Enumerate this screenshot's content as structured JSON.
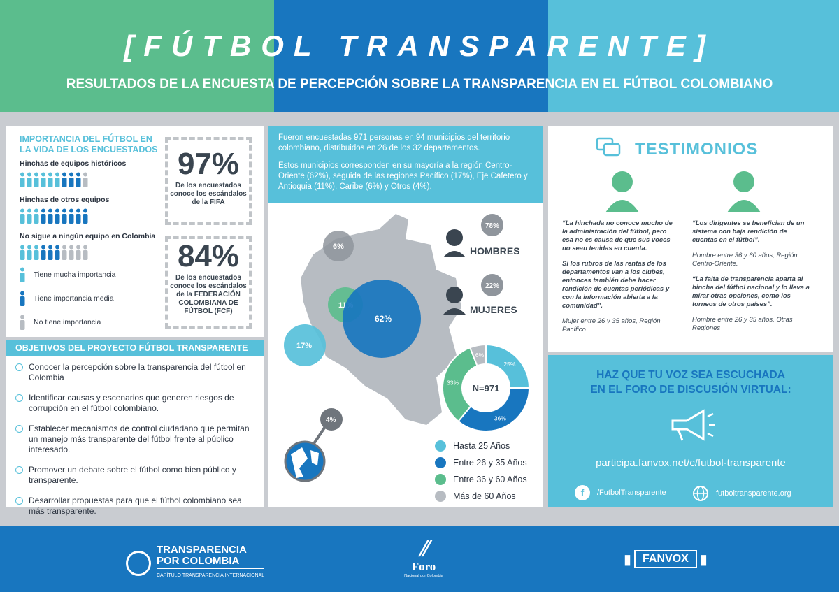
{
  "header": {
    "title": "[FÚTBOL TRANSPARENTE]",
    "subtitle": "RESULTADOS DE LA ENCUESTA DE PERCEPCIÓN SOBRE LA TRANSPARENCIA EN EL FÚTBOL COLOMBIANO"
  },
  "importance": {
    "heading_line1": "IMPORTANCIA DEL FÚTBOL EN",
    "heading_line2": "LA VIDA DE LOS ENCUESTADOS",
    "groups": [
      {
        "label": "Hinchas de equipos históricos",
        "mucha": 6,
        "media": 3,
        "ninguna": 1
      },
      {
        "label": "Hinchas de otros equipos",
        "mucha": 3,
        "media": 7,
        "ninguna": 0
      },
      {
        "label": "No sigue a ningún equipo en Colombia",
        "mucha": 3,
        "media": 3,
        "ninguna": 4
      }
    ],
    "legend": {
      "mucha": "Tiene mucha importancia",
      "media": "Tiene importancia media",
      "ninguna": "No tiene importancia"
    },
    "colors": {
      "mucha": "#57c0da",
      "media": "#1876bf",
      "ninguna": "#b7bcc2"
    }
  },
  "stats": [
    {
      "value": "97%",
      "caption_lines": [
        "De los encuestados",
        "conoce los escándalos",
        "de la FIFA"
      ]
    },
    {
      "value": "84%",
      "caption_lines": [
        "De los encuestados",
        "conoce los escándalos",
        "de la FEDERACIÓN",
        "COLOMBIANA DE",
        "FÚTBOL (FCF)"
      ]
    }
  ],
  "objectives": {
    "heading": "OBJETIVOS DEL PROYECTO FÚTBOL TRANSPARENTE",
    "items": [
      "Conocer la percepción sobre la transparencia del fútbol en Colombia",
      "Identificar causas y escenarios que generen riesgos de corrupción en el fútbol colombiano.",
      "Establecer mecanismos de control ciudadano que permitan un manejo más transparente del fútbol frente al público interesado.",
      "Promover un debate sobre el fútbol como bien público y transparente.",
      "Desarrollar propuestas para que el fútbol colombiano sea más transparente."
    ]
  },
  "survey": {
    "intro": "Fueron encuestadas 971 personas en 94 municipios del territorio colombiano, distribuidos en 26 de los 32 departamentos.",
    "regions": "Estos municipios corresponden en su mayoría a la región Centro-Oriente (62%), seguida de las regiones Pacífico (17%), Eje Cafetero y Antioquia (11%), Caribe (6%) y Otros (4%).",
    "map_regions": [
      {
        "label": "62%",
        "value": 62
      },
      {
        "label": "17%",
        "value": 17
      },
      {
        "label": "11%",
        "value": 11
      },
      {
        "label": "6%",
        "value": 6
      },
      {
        "label": "4%",
        "value": 4
      }
    ],
    "men": {
      "label": "HOMBRES",
      "pct": "78%"
    },
    "women": {
      "label": "MUJERES",
      "pct": "22%"
    },
    "donut_center": "N=971"
  },
  "chart_data": {
    "type": "pie",
    "title": "",
    "center_label": "N=971",
    "categories": [
      "Hasta 25 Años",
      "Entre 26 y 35 Años",
      "Entre 36 y 60 Años",
      "Más de 60 Años"
    ],
    "values": [
      25,
      36,
      33,
      6
    ],
    "colors": [
      "#57c0da",
      "#1876bf",
      "#5bbd8d",
      "#b7bcc2"
    ]
  },
  "testimonios": {
    "heading": "TESTIMONIOS",
    "left": {
      "quote1": "“La hinchada no conoce mucho de la administración del fútbol, pero esa no es causa de que sus voces no sean tenidas en cuenta.",
      "quote2": "Si los rubros de las rentas de los departamentos van a los clubes, entonces también debe hacer rendición de cuentas periódicas y con la información abierta a la comunidad”.",
      "author": "Mujer entre 26 y 35 años, Región Pacífico"
    },
    "right": {
      "quote1": "“Los dirigentes se benefician de un sistema con baja rendición de cuentas en el fútbol”.",
      "author1": "Hombre entre 36 y 60 años, Región Centro-Oriente.",
      "quote2": "“La falta de transparencia aparta al hincha del fútbol nacional y lo lleva a mirar otras opciones, como los torneos de otros países”.",
      "author2": "Hombre entre 26 y 35 años, Otras Regiones"
    }
  },
  "cta": {
    "line1": "HAZ QUE TU VOZ SEA ESCUCHADA",
    "line2": "EN EL FORO DE DISCUSIÓN VIRTUAL:",
    "url": "participa.fanvox.net/c/futbol-transparente",
    "facebook": "/FutbolTransparente",
    "website": "futboltransparente.org"
  },
  "footer": {
    "tpc_line1": "TRANSPARENCIA",
    "tpc_line2": "POR COLOMBIA",
    "tpc_sub": "CAPÍTULO TRANSPARENCIA INTERNACIONAL",
    "foro": "Foro",
    "foro_sub": "Nacional por Colombia",
    "fanvox": "FANVOX"
  }
}
